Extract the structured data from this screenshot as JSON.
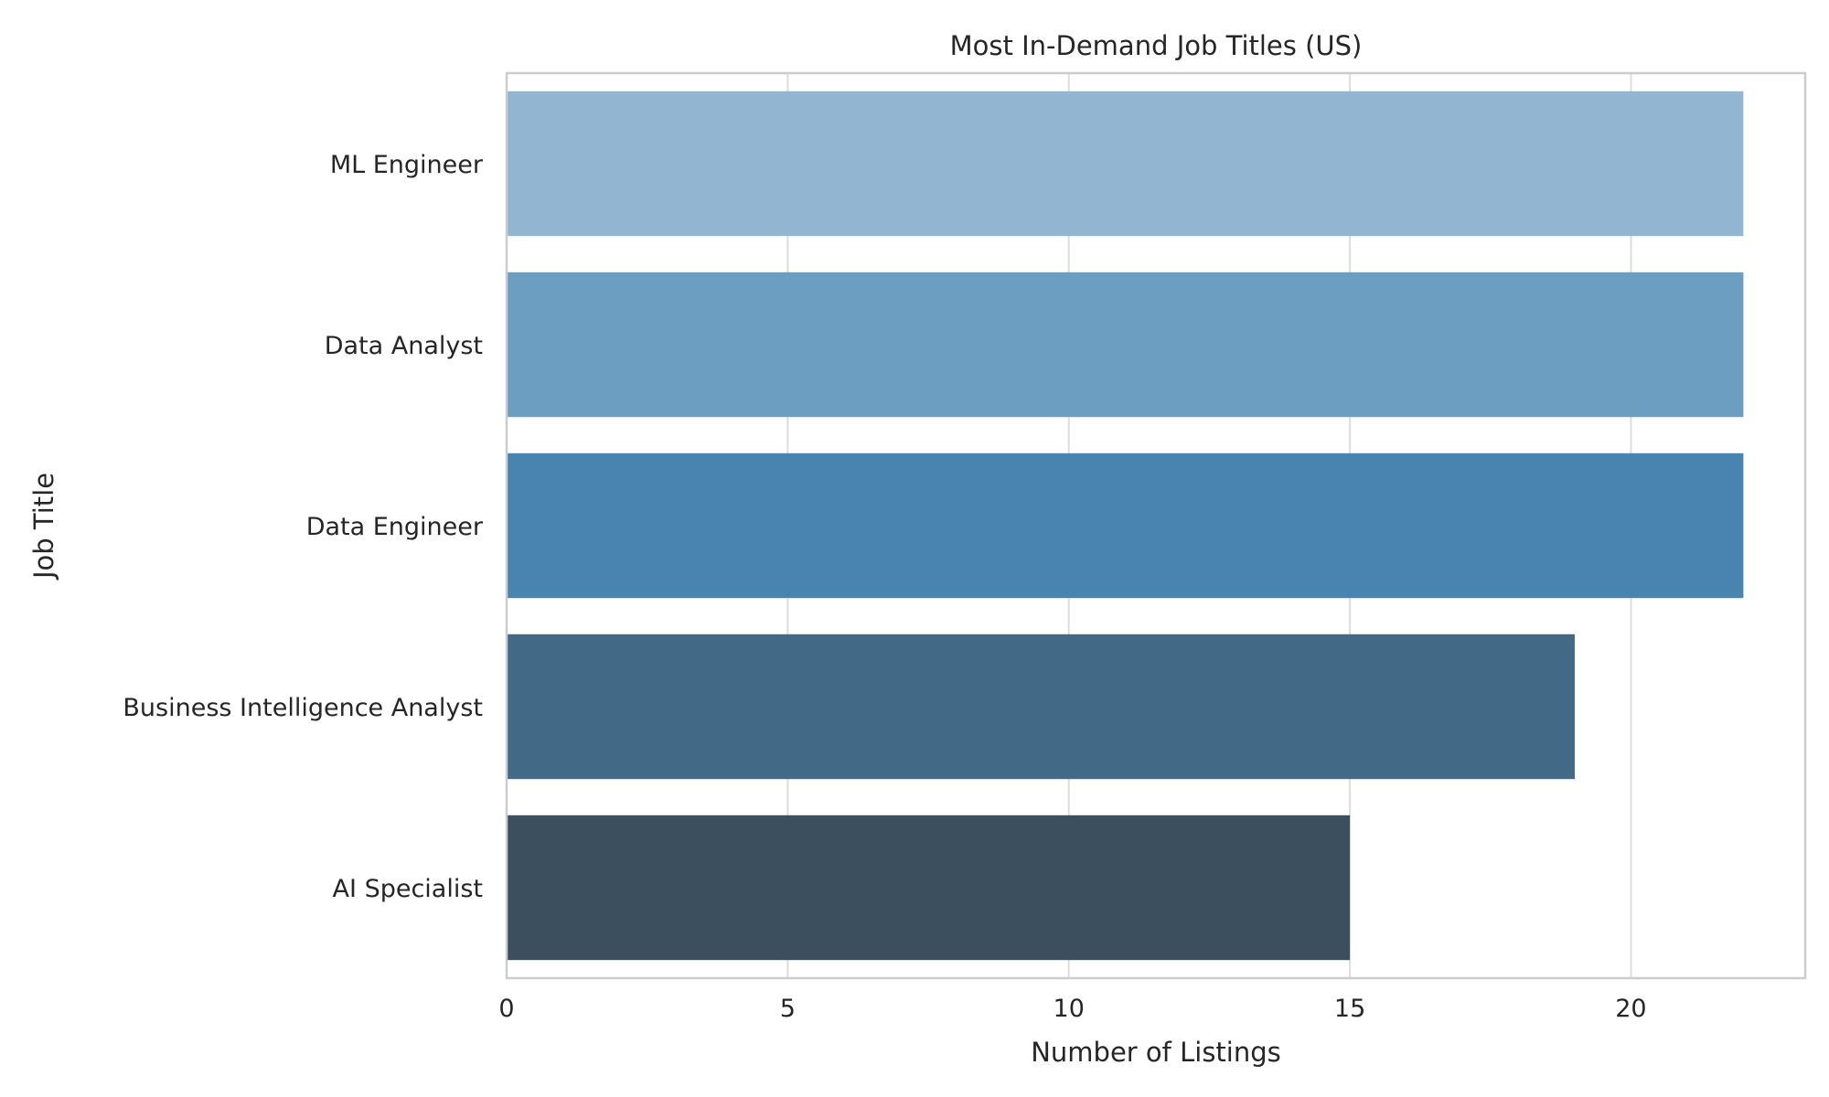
{
  "chart_data": {
    "type": "bar",
    "orientation": "horizontal",
    "title": "Most In-Demand Job Titles (US)",
    "xlabel": "Number of Listings",
    "ylabel": "Job Title",
    "categories": [
      "ML Engineer",
      "Data Analyst",
      "Data Engineer",
      "Business Intelligence Analyst",
      "AI Specialist"
    ],
    "values": [
      22,
      22,
      22,
      19,
      15
    ],
    "xlim": [
      0,
      23.1
    ],
    "xticks": [
      0,
      5,
      10,
      15,
      20
    ],
    "grid": true,
    "colors": [
      "#92b6d1",
      "#6c9ec2",
      "#4983b0",
      "#426a87",
      "#3c4f5e"
    ]
  }
}
